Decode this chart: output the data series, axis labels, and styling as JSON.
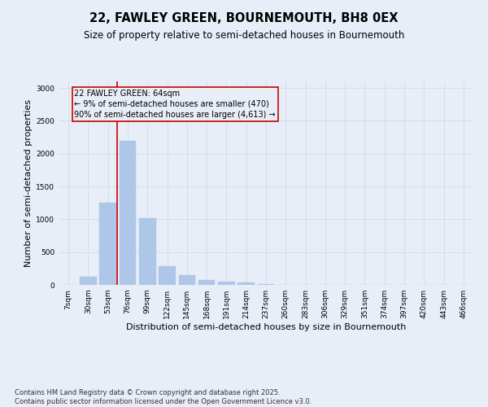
{
  "title_line1": "22, FAWLEY GREEN, BOURNEMOUTH, BH8 0EX",
  "title_line2": "Size of property relative to semi-detached houses in Bournemouth",
  "xlabel": "Distribution of semi-detached houses by size in Bournemouth",
  "ylabel": "Number of semi-detached properties",
  "categories": [
    "7sqm",
    "30sqm",
    "53sqm",
    "76sqm",
    "99sqm",
    "122sqm",
    "145sqm",
    "168sqm",
    "191sqm",
    "214sqm",
    "237sqm",
    "260sqm",
    "283sqm",
    "306sqm",
    "329sqm",
    "351sqm",
    "374sqm",
    "397sqm",
    "420sqm",
    "443sqm",
    "466sqm"
  ],
  "values": [
    0,
    120,
    1250,
    2200,
    1020,
    290,
    145,
    80,
    55,
    35,
    10,
    5,
    2,
    0,
    0,
    0,
    0,
    0,
    0,
    0,
    0
  ],
  "bar_color": "#aec6e8",
  "bar_edge_color": "#aec6e8",
  "grid_color": "#c8d8e8",
  "background_color": "#e8eef8",
  "vline_color": "#cc0000",
  "vline_pos": 2.48,
  "vline_label_title": "22 FAWLEY GREEN: 64sqm",
  "vline_label_line2": "← 9% of semi-detached houses are smaller (470)",
  "vline_label_line3": "90% of semi-detached houses are larger (4,613) →",
  "annotation_box_color": "#cc0000",
  "ylim": [
    0,
    3100
  ],
  "yticks": [
    0,
    500,
    1000,
    1500,
    2000,
    2500,
    3000
  ],
  "footnote_line1": "Contains HM Land Registry data © Crown copyright and database right 2025.",
  "footnote_line2": "Contains public sector information licensed under the Open Government Licence v3.0.",
  "title_fontsize": 10.5,
  "subtitle_fontsize": 8.5,
  "axis_label_fontsize": 8,
  "tick_fontsize": 6.5,
  "footnote_fontsize": 6,
  "annotation_fontsize": 7
}
